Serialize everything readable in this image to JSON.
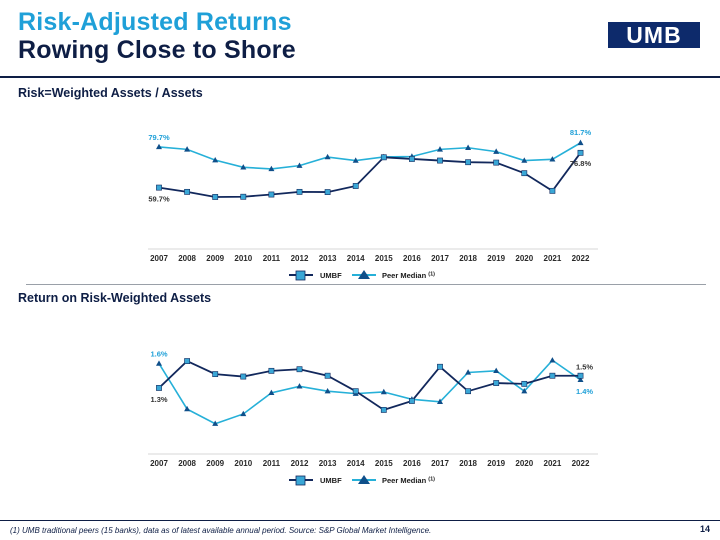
{
  "header": {
    "title_line1": "Risk-Adjusted Returns",
    "title_line2": "Rowing Close to Shore",
    "logo_text": "UMB"
  },
  "colors": {
    "navy": "#0e1e45",
    "umbf_line": "#12285c",
    "umbf_marker": "#3aa7d6",
    "peer_line": "#26b0d8",
    "peer_marker": "#0f4f8a",
    "brand_blue": "#1fa0d8"
  },
  "chart_data": [
    {
      "type": "line",
      "title": "Risk=Weighted Assets / Assets",
      "categories": [
        "2007",
        "2008",
        "2009",
        "2010",
        "2011",
        "2012",
        "2013",
        "2014",
        "2015",
        "2016",
        "2017",
        "2018",
        "2019",
        "2020",
        "2021",
        "2022"
      ],
      "series": [
        {
          "name": "UMBF",
          "values": [
            59.7,
            57.6,
            55.1,
            55.2,
            56.3,
            57.6,
            57.5,
            60.5,
            74.6,
            73.8,
            73.0,
            72.2,
            72.0,
            66.8,
            58.1,
            76.8
          ]
        },
        {
          "name": "Peer Median (1)",
          "values": [
            79.7,
            78.5,
            73.2,
            69.7,
            68.9,
            70.5,
            74.7,
            73.0,
            74.8,
            75.0,
            78.5,
            79.3,
            77.4,
            73.0,
            73.6,
            81.7
          ]
        }
      ],
      "data_labels": {
        "umbf_first": "59.7%",
        "umbf_last": "76.8%",
        "peer_first": "79.7%",
        "peer_last": "81.7%"
      },
      "ylim": [
        30,
        90
      ],
      "xlabel": "",
      "ylabel": "",
      "legend": "bottom-center"
    },
    {
      "type": "line",
      "title": "Return on Risk-Weighted Assets",
      "categories": [
        "2007",
        "2008",
        "2009",
        "2010",
        "2011",
        "2012",
        "2013",
        "2014",
        "2015",
        "2016",
        "2017",
        "2018",
        "2019",
        "2020",
        "2021",
        "2022"
      ],
      "series": [
        {
          "name": "UMBF",
          "values": [
            1.3,
            1.63,
            1.47,
            1.44,
            1.51,
            1.53,
            1.45,
            1.26,
            1.03,
            1.14,
            1.56,
            1.26,
            1.36,
            1.35,
            1.45,
            1.45
          ]
        },
        {
          "name": "Peer Median (1)",
          "values": [
            1.6,
            1.04,
            0.86,
            0.98,
            1.24,
            1.32,
            1.26,
            1.23,
            1.25,
            1.16,
            1.13,
            1.49,
            1.51,
            1.26,
            1.64,
            1.4
          ]
        }
      ],
      "data_labels": {
        "umbf_first": "1.3%",
        "umbf_last": "1.5%",
        "peer_first": "1.6%",
        "peer_last": "1.4%"
      },
      "ylim": [
        0.5,
        2.0
      ],
      "xlabel": "",
      "ylabel": "",
      "legend": "bottom-center"
    }
  ],
  "legend": {
    "umbf": "UMBF",
    "peer": "Peer Median",
    "peer_sup": "(1)"
  },
  "footnote": "(1) UMB traditional peers (15 banks), data as of latest available annual period. Source: S&P Global Market Intelligence.",
  "page_number": "14"
}
